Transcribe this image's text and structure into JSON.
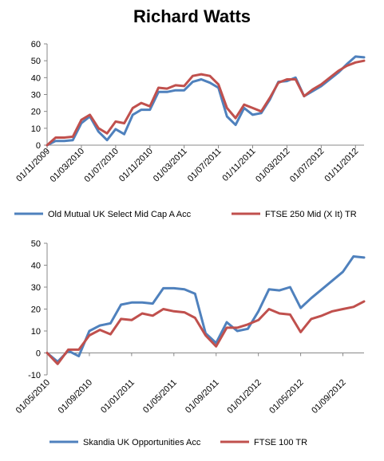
{
  "title": "Richard Watts",
  "colors": {
    "blue": "#4F81BD",
    "red": "#C0504D"
  },
  "chart_data": [
    {
      "type": "line",
      "x": [
        "01/11/2009",
        "01/12/2009",
        "01/01/2010",
        "01/02/2010",
        "01/03/2010",
        "01/04/2010",
        "01/05/2010",
        "01/06/2010",
        "01/07/2010",
        "01/08/2010",
        "01/09/2010",
        "01/10/2010",
        "01/11/2010",
        "01/12/2010",
        "01/01/2011",
        "01/02/2011",
        "01/03/2011",
        "01/04/2011",
        "01/05/2011",
        "01/06/2011",
        "01/07/2011",
        "01/08/2011",
        "01/09/2011",
        "01/10/2011",
        "01/11/2011",
        "01/12/2011",
        "01/01/2012",
        "01/02/2012",
        "01/03/2012",
        "01/04/2012",
        "01/05/2012",
        "01/06/2012",
        "01/07/2012",
        "01/08/2012",
        "01/09/2012",
        "01/10/2012",
        "01/11/2012",
        "01/12/2012"
      ],
      "x_tick_labels": [
        "01/11/2009",
        "01/03/2010",
        "01/07/2010",
        "01/11/2010",
        "01/03/2011",
        "01/07/2011",
        "01/11/2011",
        "01/03/2012",
        "01/07/2012",
        "01/11/2012"
      ],
      "series": [
        {
          "name": "Old Mutual UK Select Mid Cap A Acc",
          "color": "#4F81BD",
          "values": [
            0,
            2.5,
            2.5,
            3,
            13,
            17,
            8,
            3,
            9.5,
            6.5,
            18,
            21,
            21,
            31.5,
            31.5,
            32.5,
            32.5,
            37.5,
            39,
            37,
            34,
            17,
            12,
            22,
            18,
            19,
            27,
            37.5,
            38,
            40,
            29,
            32,
            35,
            39,
            43,
            48,
            52.5,
            52
          ]
        },
        {
          "name": "FTSE 250 Mid (X It) TR",
          "color": "#C0504D",
          "values": [
            0,
            4.5,
            4.5,
            5,
            15,
            18,
            10,
            7,
            14,
            13,
            22,
            25,
            23,
            34,
            33.5,
            35.5,
            35,
            41,
            42,
            41,
            36,
            22,
            16,
            24,
            22,
            20,
            28,
            37,
            39,
            39,
            29,
            33,
            36,
            40,
            44,
            47,
            49,
            50
          ]
        }
      ],
      "ylim": [
        0,
        60
      ],
      "yticks": [
        0,
        10,
        20,
        30,
        40,
        50,
        60
      ],
      "legend": "bottom"
    },
    {
      "type": "line",
      "x": [
        "01/05/2010",
        "01/06/2010",
        "01/07/2010",
        "01/08/2010",
        "01/09/2010",
        "01/10/2010",
        "01/11/2010",
        "01/12/2010",
        "01/01/2011",
        "01/02/2011",
        "01/03/2011",
        "01/04/2011",
        "01/05/2011",
        "01/06/2011",
        "01/07/2011",
        "01/08/2011",
        "01/09/2011",
        "01/10/2011",
        "01/11/2011",
        "01/12/2011",
        "01/01/2012",
        "01/02/2012",
        "01/03/2012",
        "01/04/2012",
        "01/05/2012",
        "01/06/2012",
        "01/07/2012",
        "01/08/2012",
        "01/09/2012",
        "01/10/2012",
        "01/11/2012"
      ],
      "x_tick_labels": [
        "01/05/2010",
        "01/09/2010",
        "01/01/2011",
        "01/05/2011",
        "01/09/2011",
        "01/01/2012",
        "01/05/2012",
        "01/09/2012"
      ],
      "series": [
        {
          "name": "Skandia UK Opportunities Acc",
          "color": "#4F81BD",
          "values": [
            0,
            -4,
            1,
            -1.5,
            10,
            12.5,
            13.5,
            22,
            23,
            23,
            22.5,
            29.5,
            29.5,
            29,
            27,
            9,
            4.5,
            14,
            10,
            11,
            19,
            29,
            28.5,
            30,
            20.5,
            25,
            29,
            33,
            37,
            44,
            43.5
          ]
        },
        {
          "name": "FTSE 100 TR",
          "color": "#C0504D",
          "values": [
            0,
            -5,
            1.5,
            1.5,
            8,
            10.5,
            8.5,
            15.5,
            15,
            18,
            17,
            20,
            19,
            18.5,
            16,
            8,
            3,
            11.5,
            11.5,
            13,
            15,
            20,
            18,
            17.5,
            9.5,
            15.5,
            17,
            19,
            20,
            21,
            23.5
          ]
        }
      ],
      "ylim": [
        -10,
        50
      ],
      "yticks": [
        -10,
        0,
        10,
        20,
        30,
        40,
        50
      ],
      "legend": "bottom"
    }
  ]
}
